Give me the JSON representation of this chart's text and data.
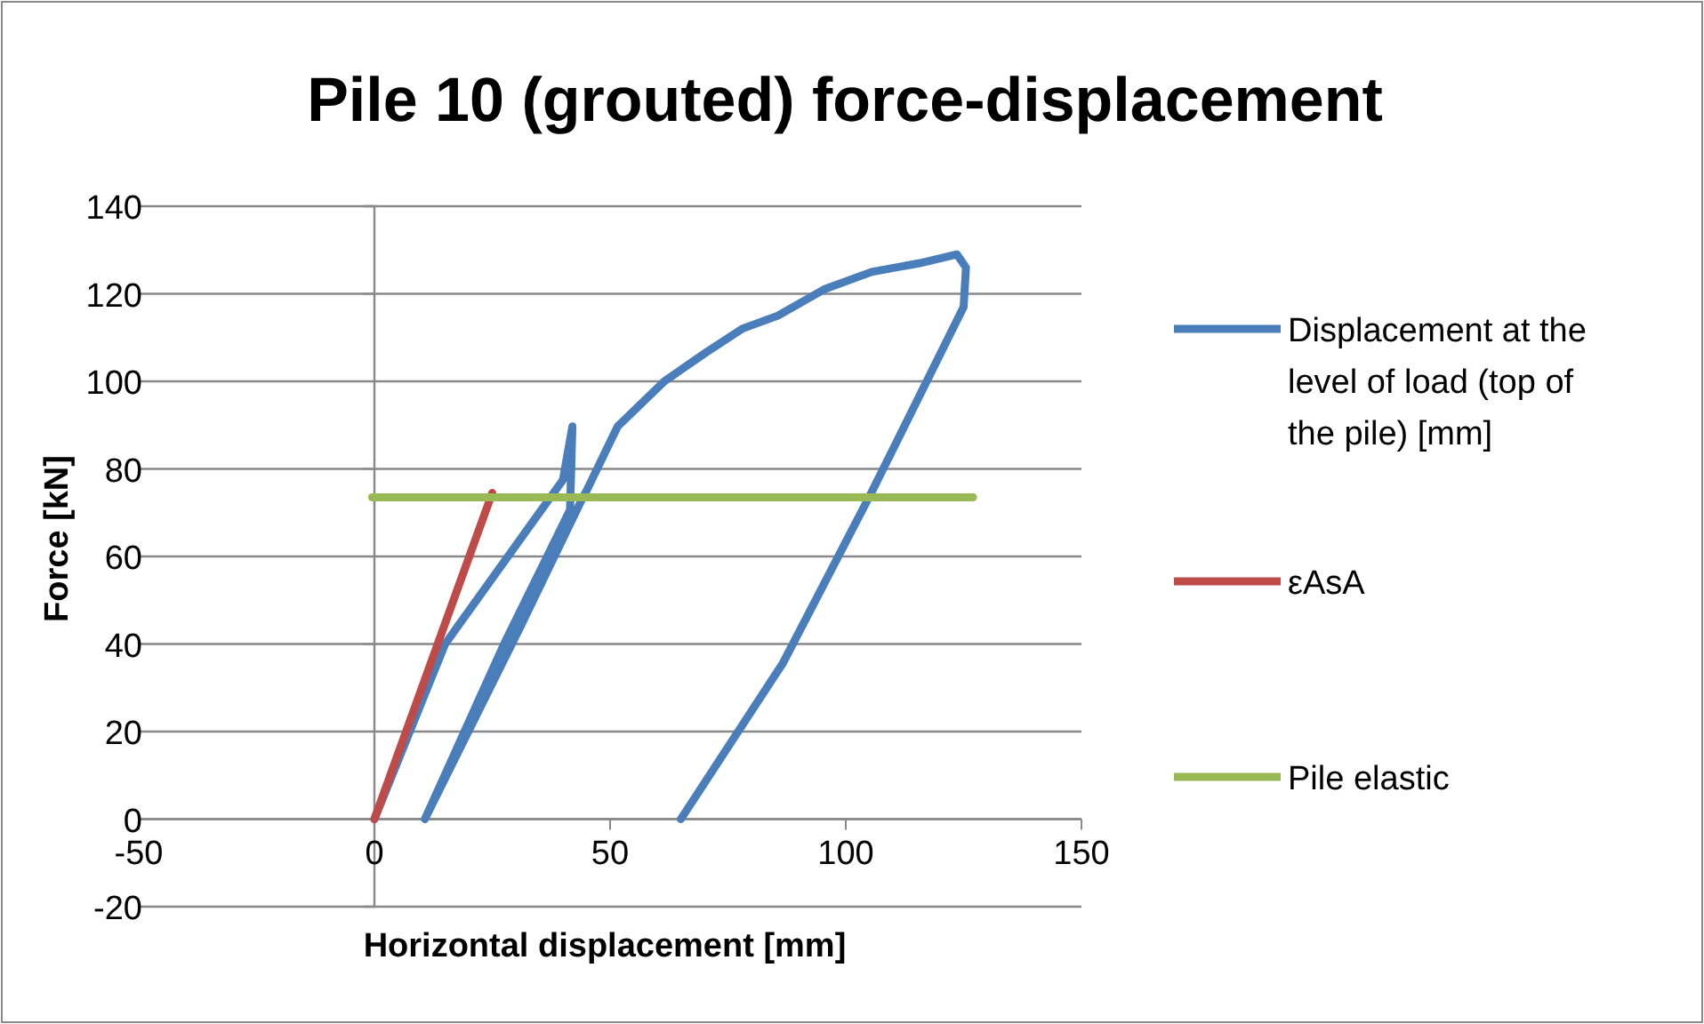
{
  "chart_data": {
    "type": "line",
    "title": "Pile 10 (grouted) force-displacement",
    "xlabel": "Horizontal displacement [mm]",
    "ylabel": "Force [kN]",
    "xlim": [
      -50,
      150
    ],
    "xticks": [
      -50,
      0,
      50,
      100,
      150
    ],
    "ylim": [
      -20,
      140
    ],
    "yticks": [
      -20,
      0,
      20,
      40,
      60,
      80,
      100,
      120,
      140
    ],
    "grid": "y",
    "legend": "right",
    "marker": "none",
    "line_style": "solid",
    "series": [
      {
        "name": "Displacement at the level of load (top of the pile) [mm]",
        "color": "#4a7ebb",
        "x": [
          0,
          15,
          30,
          40,
          42,
          41.5,
          27.5,
          10.7,
          31,
          44,
          45,
          51.6,
          61.5,
          70.5,
          78,
          85.6,
          95.4,
          105.5,
          115.7,
          123.6,
          125.5,
          125,
          105.5,
          86.7,
          65
        ],
        "values": [
          0,
          40,
          62.5,
          77.5,
          89.7,
          70.6,
          40,
          0,
          44,
          73,
          75,
          89.7,
          100,
          106.7,
          112,
          115,
          121,
          125,
          127,
          129,
          126,
          117,
          74.7,
          35.7,
          0
        ]
      },
      {
        "name": "εAsA",
        "color": "#be4b48",
        "x": [
          0,
          25
        ],
        "values": [
          0,
          74.5
        ]
      },
      {
        "name": "Pile elastic",
        "color": "#98b954",
        "x": [
          -0.5,
          127
        ],
        "values": [
          73.5,
          73.5
        ]
      }
    ]
  }
}
